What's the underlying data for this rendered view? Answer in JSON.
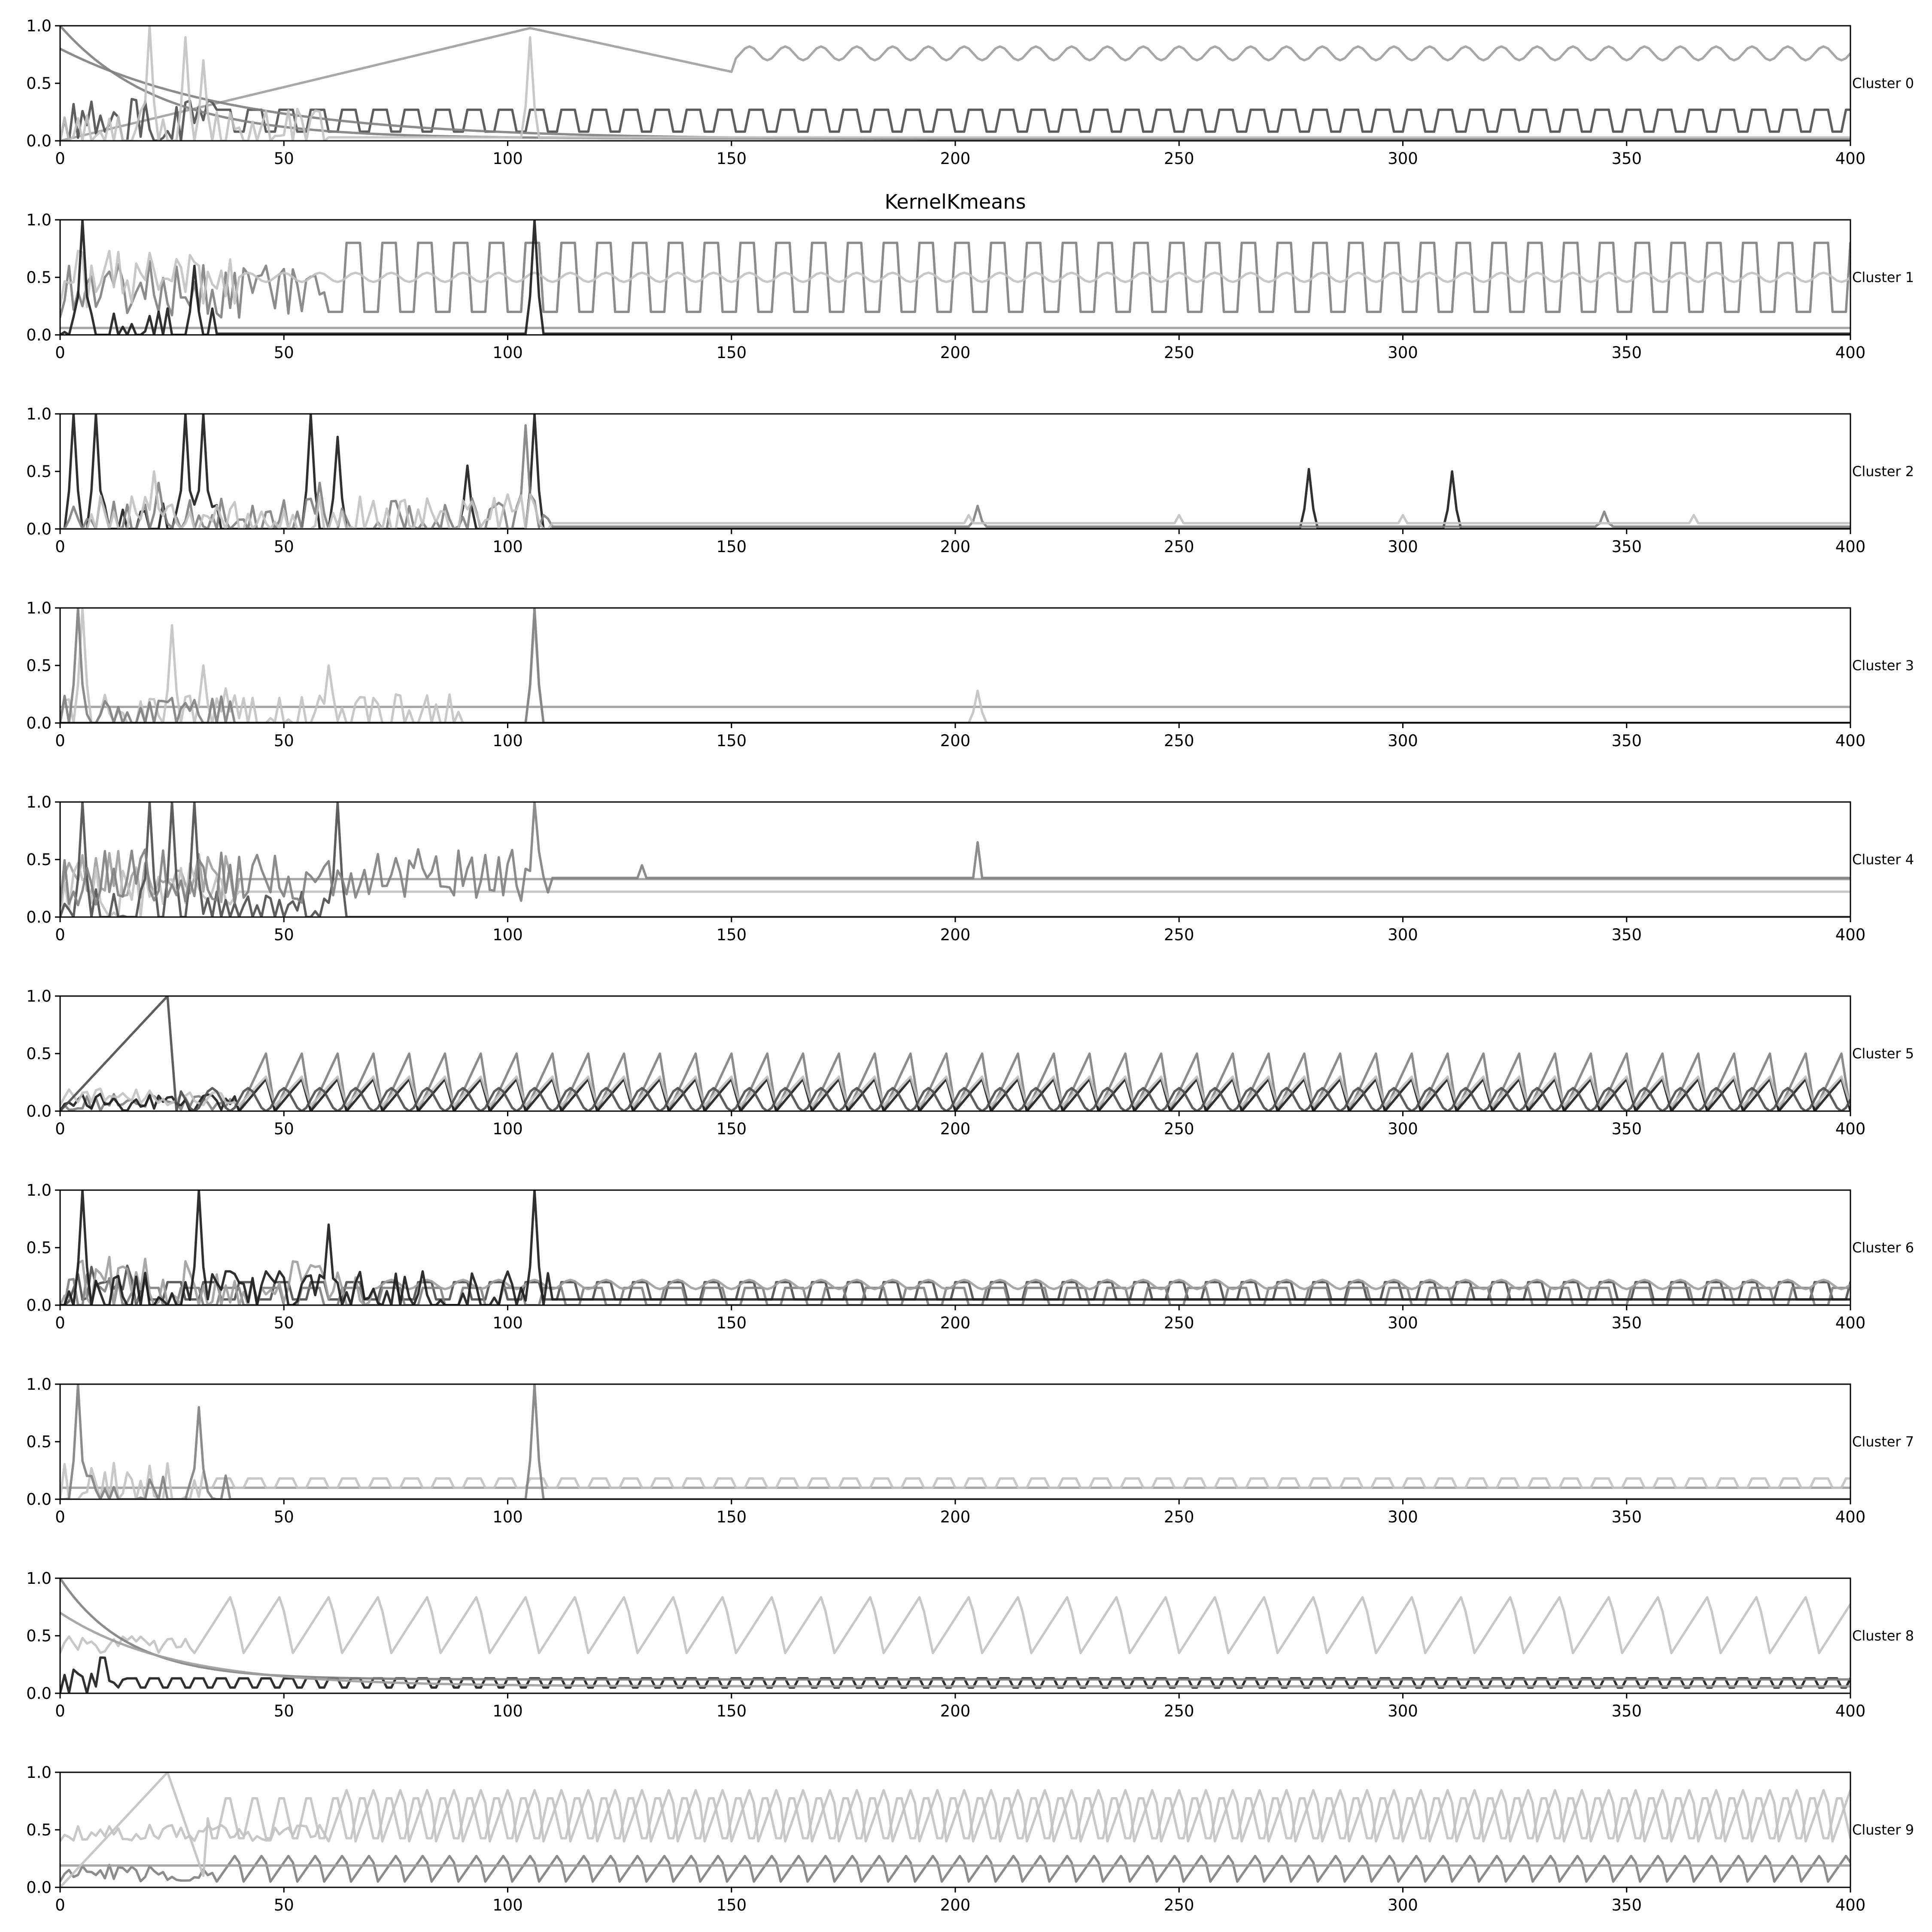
{
  "figure": {
    "title": "KernelKmeans"
  },
  "chart_data": {
    "type": "line",
    "title": "KernelKmeans",
    "xlim": [
      0,
      400
    ],
    "ylim": [
      0,
      1
    ],
    "xticks": [
      0,
      50,
      100,
      150,
      200,
      250,
      300,
      350,
      400
    ],
    "yticks": [
      0.0,
      0.5,
      1.0
    ],
    "xtick_labels": [
      "0",
      "50",
      "100",
      "150",
      "200",
      "250",
      "300",
      "350",
      "400"
    ],
    "ytick_labels": [
      "0.0",
      "0.5",
      "1.0"
    ],
    "grid": false,
    "legend": "none",
    "line_colors": [
      "#1a1a1a",
      "#4d4d4d",
      "#808080",
      "#9e9e9e",
      "#c2c2c2"
    ],
    "panels": [
      {
        "label": "Cluster 0",
        "series": [
          {
            "shade": 3,
            "kind": "rise",
            "start": 0.0,
            "mid_x": 105,
            "mid": 0.98,
            "level": 0.76,
            "amp": 0.06,
            "period": 8,
            "dip_x": 150,
            "dip": 0.6
          },
          {
            "shade": 1,
            "kind": "square",
            "level": 0.27,
            "low": 0.08,
            "period": 7,
            "start_x": 35,
            "noise_end": 35
          },
          {
            "shade": 2,
            "kind": "decay",
            "start": 1.0,
            "tau": 22,
            "floor": 0.02
          },
          {
            "shade": 2,
            "kind": "decay",
            "start": 0.8,
            "tau": 40,
            "floor": 0.01
          },
          {
            "shade": 4,
            "kind": "noise",
            "level": 0.03,
            "spikes": [
              [
                20,
                1.0
              ],
              [
                28,
                0.9
              ],
              [
                32,
                0.7
              ],
              [
                105,
                0.9
              ]
            ],
            "noise_end": 60
          }
        ]
      },
      {
        "label": "Cluster 1",
        "series": [
          {
            "shade": 2,
            "kind": "square",
            "level": 0.8,
            "low": 0.2,
            "period": 8,
            "start_x": 60,
            "noise_end": 60
          },
          {
            "shade": 4,
            "kind": "flat",
            "level": 0.5,
            "amp": 0.04,
            "period": 8,
            "noise_end": 40
          },
          {
            "shade": 3,
            "kind": "flat",
            "level": 0.06,
            "amp": 0.0,
            "period": 8
          },
          {
            "shade": 0,
            "kind": "noise",
            "level": 0.01,
            "spikes": [
              [
                5,
                1.0
              ],
              [
                30,
                0.6
              ],
              [
                106,
                1.0
              ]
            ],
            "noise_end": 35
          }
        ]
      },
      {
        "label": "Cluster 2",
        "series": [
          {
            "shade": 0,
            "kind": "noise",
            "level": 0.0,
            "spikes": [
              [
                3,
                1.0
              ],
              [
                8,
                1.0
              ],
              [
                28,
                1.0
              ],
              [
                32,
                1.0
              ],
              [
                56,
                1.0
              ],
              [
                62,
                0.8
              ],
              [
                91,
                0.55
              ],
              [
                106,
                1.0
              ],
              [
                279,
                0.52
              ],
              [
                311,
                0.5
              ]
            ],
            "noise_end": 40
          },
          {
            "shade": 2,
            "kind": "noise",
            "level": 0.02,
            "spikes": [
              [
                22,
                0.4
              ],
              [
                58,
                0.4
              ],
              [
                104,
                0.9
              ],
              [
                205,
                0.2
              ],
              [
                345,
                0.15
              ]
            ],
            "noise_end": 110
          },
          {
            "shade": 4,
            "kind": "noise",
            "level": 0.05,
            "spikes": [
              [
                21,
                0.5
              ],
              [
                35,
                0.2
              ],
              [
                45,
                0.15
              ],
              [
                100,
                0.3
              ],
              [
                203,
                0.12
              ],
              [
                250,
                0.12
              ],
              [
                300,
                0.12
              ],
              [
                365,
                0.12
              ]
            ],
            "noise_end": 110
          }
        ]
      },
      {
        "label": "Cluster 3",
        "series": [
          {
            "shade": 3,
            "kind": "flat",
            "level": 0.14,
            "amp": 0.0,
            "period": 8
          },
          {
            "shade": 4,
            "kind": "noise",
            "level": 0.0,
            "spikes": [
              [
                5,
                1.0
              ],
              [
                25,
                0.85
              ],
              [
                32,
                0.5
              ],
              [
                37,
                0.3
              ],
              [
                60,
                0.5
              ],
              [
                106,
                0.9
              ],
              [
                205,
                0.28
              ]
            ],
            "noise_end": 90
          },
          {
            "shade": 2,
            "kind": "noise",
            "level": 0.0,
            "spikes": [
              [
                4,
                1.0
              ],
              [
                106,
                1.0
              ],
              [
                30,
                0.2
              ]
            ],
            "noise_end": 40
          },
          {
            "shade": 0,
            "kind": "flat",
            "level": 0.0,
            "amp": 0.0,
            "period": 8
          }
        ]
      },
      {
        "label": "Cluster 4",
        "series": [
          {
            "shade": 3,
            "kind": "flat",
            "level": 0.33,
            "amp": 0.0,
            "period": 8,
            "noise_end": 40
          },
          {
            "shade": 4,
            "kind": "flat",
            "level": 0.22,
            "amp": 0.0,
            "period": 8,
            "noise_end": 40
          },
          {
            "shade": 1,
            "kind": "noise",
            "level": 0.0,
            "spikes": [
              [
                5,
                1.0
              ],
              [
                20,
                1.0
              ],
              [
                25,
                1.0
              ],
              [
                30,
                1.0
              ],
              [
                62,
                1.0
              ]
            ],
            "noise_end": 64
          },
          {
            "shade": 2,
            "kind": "noise",
            "level": 0.34,
            "spikes": [
              [
                106,
                1.0
              ],
              [
                130,
                0.45
              ],
              [
                205,
                0.65
              ]
            ],
            "noise_end": 110
          }
        ]
      },
      {
        "label": "Cluster 5",
        "series": [
          {
            "shade": 2,
            "kind": "saw",
            "level": 0.0,
            "peak": 0.5,
            "period": 8,
            "start_x": 40
          },
          {
            "shade": 0,
            "kind": "saw",
            "level": 0.0,
            "peak": 0.28,
            "period": 8,
            "start_x": 40
          },
          {
            "shade": 4,
            "kind": "saw",
            "level": 0.05,
            "peak": 0.3,
            "period": 8,
            "start_x": 40
          },
          {
            "shade": 1,
            "kind": "rise",
            "start": 0.0,
            "mid_x": 24,
            "mid": 1.0,
            "level": 0.1,
            "amp": 0.1,
            "period": 8,
            "dip_x": 26,
            "dip": 0.0
          }
        ]
      },
      {
        "label": "Cluster 6",
        "series": [
          {
            "shade": 1,
            "kind": "square",
            "level": 0.2,
            "low": 0.05,
            "period": 8,
            "start_x": 20,
            "noise_end": 20
          },
          {
            "shade": 2,
            "kind": "square",
            "level": 0.15,
            "low": 0.0,
            "period": 9,
            "start_x": 20,
            "noise_end": 20
          },
          {
            "shade": 3,
            "kind": "flat",
            "level": 0.18,
            "amp": 0.04,
            "period": 8,
            "noise_end": 70
          },
          {
            "shade": 0,
            "kind": "noise",
            "level": 0.05,
            "spikes": [
              [
                5,
                1.0
              ],
              [
                31,
                1.0
              ],
              [
                106,
                1.0
              ],
              [
                60,
                0.7
              ]
            ],
            "noise_end": 110
          }
        ]
      },
      {
        "label": "Cluster 7",
        "series": [
          {
            "shade": 3,
            "kind": "flat",
            "level": 0.1,
            "amp": 0.0,
            "period": 8
          },
          {
            "shade": 4,
            "kind": "square",
            "level": 0.18,
            "low": 0.1,
            "period": 7,
            "start_x": 33,
            "noise_end": 33
          },
          {
            "shade": 2,
            "kind": "noise",
            "level": 0.0,
            "spikes": [
              [
                4,
                1.0
              ],
              [
                31,
                0.8
              ],
              [
                106,
                1.0
              ]
            ],
            "noise_end": 40
          }
        ]
      },
      {
        "label": "Cluster 8",
        "series": [
          {
            "shade": 4,
            "kind": "saw",
            "level": 0.35,
            "peak": 0.85,
            "period": 11,
            "start_x": 30
          },
          {
            "shade": 0,
            "kind": "square",
            "level": 0.13,
            "low": 0.05,
            "period": 5,
            "start_x": 15,
            "noise_end": 15
          },
          {
            "shade": 2,
            "kind": "decay",
            "start": 1.0,
            "tau": 15,
            "floor": 0.12
          },
          {
            "shade": 3,
            "kind": "decay",
            "start": 0.7,
            "tau": 25,
            "floor": 0.06
          }
        ]
      },
      {
        "label": "Cluster 9",
        "series": [
          {
            "shade": 4,
            "kind": "saw",
            "level": 0.4,
            "peak": 0.9,
            "period": 6,
            "start_x": 60
          },
          {
            "shade": 2,
            "kind": "saw",
            "level": 0.05,
            "peak": 0.3,
            "period": 6,
            "start_x": 35
          },
          {
            "shade": 3,
            "kind": "flat",
            "level": 0.19,
            "amp": 0.0,
            "period": 8
          },
          {
            "shade": 4,
            "kind": "rise",
            "start": 0.0,
            "mid_x": 24,
            "mid": 1.0,
            "level": 0.6,
            "amp": 0.2,
            "period": 6,
            "dip_x": 32,
            "dip": 0.1
          }
        ]
      }
    ]
  }
}
